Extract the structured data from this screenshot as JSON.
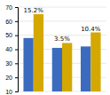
{
  "chart_data": {
    "type": "bar",
    "categories": [
      null,
      null,
      null
    ],
    "series": [
      {
        "color": "#3a6bbf",
        "values": [
          48,
          41,
          42
        ]
      },
      {
        "color": "#d4a800",
        "values": [
          65,
          44.5,
          52
        ]
      }
    ],
    "annotations": [
      "15.2%",
      "3.5%",
      "10.4%"
    ],
    "ylim": [
      10,
      70
    ],
    "yticks": [
      10,
      20,
      30,
      40,
      50,
      60,
      70
    ],
    "grid": true,
    "tick_labels": "y"
  }
}
